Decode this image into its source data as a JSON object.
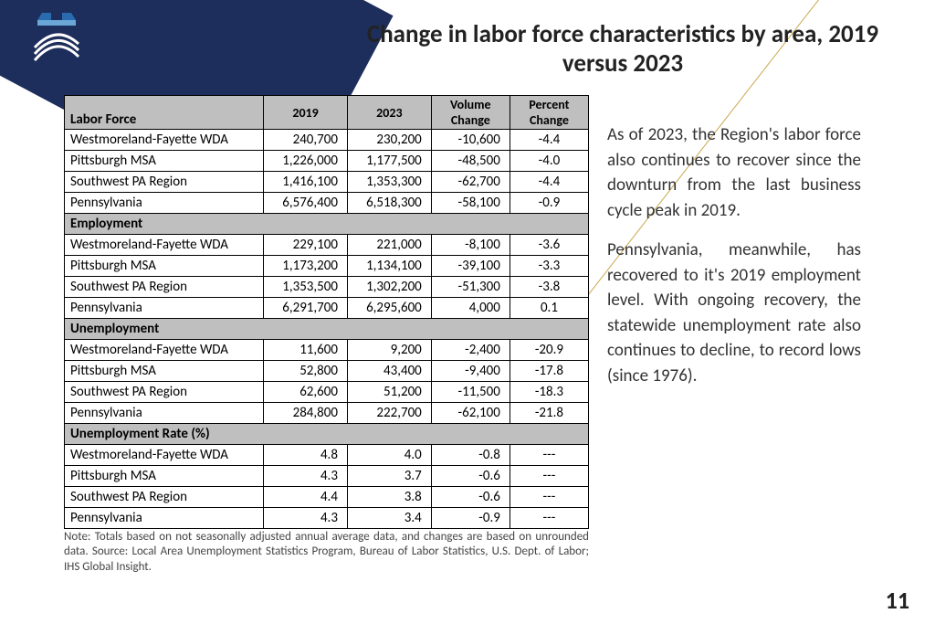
{
  "title": "Change in labor force characteristics by area, 2019 versus 2023",
  "page_number": "11",
  "colors": {
    "band": "#1d2e5c",
    "accent_line": "#c9a84f",
    "header_bg": "#bfbfbf",
    "logo_primary": "#2a6bb0",
    "logo_dark": "#1d2e5c"
  },
  "table": {
    "columns": [
      "2019",
      "2023",
      "Volume Change",
      "Percent Change"
    ],
    "sections": [
      {
        "label": "Labor Force",
        "rows": [
          [
            "Westmoreland-Fayette WDA",
            "240,700",
            "230,200",
            "-10,600",
            "-4.4"
          ],
          [
            "Pittsburgh MSA",
            "1,226,000",
            "1,177,500",
            "-48,500",
            "-4.0"
          ],
          [
            "Southwest PA Region",
            "1,416,100",
            "1,353,300",
            "-62,700",
            "-4.4"
          ],
          [
            "Pennsylvania",
            "6,576,400",
            "6,518,300",
            "-58,100",
            "-0.9"
          ]
        ]
      },
      {
        "label": "Employment",
        "rows": [
          [
            "Westmoreland-Fayette WDA",
            "229,100",
            "221,000",
            "-8,100",
            "-3.6"
          ],
          [
            "Pittsburgh MSA",
            "1,173,200",
            "1,134,100",
            "-39,100",
            "-3.3"
          ],
          [
            "Southwest PA Region",
            "1,353,500",
            "1,302,200",
            "-51,300",
            "-3.8"
          ],
          [
            "Pennsylvania",
            "6,291,700",
            "6,295,600",
            "4,000",
            "0.1"
          ]
        ]
      },
      {
        "label": "Unemployment",
        "rows": [
          [
            "Westmoreland-Fayette WDA",
            "11,600",
            "9,200",
            "-2,400",
            "-20.9"
          ],
          [
            "Pittsburgh MSA",
            "52,800",
            "43,400",
            "-9,400",
            "-17.8"
          ],
          [
            "Southwest PA Region",
            "62,600",
            "51,200",
            "-11,500",
            "-18.3"
          ],
          [
            "Pennsylvania",
            "284,800",
            "222,700",
            "-62,100",
            "-21.8"
          ]
        ]
      },
      {
        "label": "Unemployment Rate (%)",
        "rows": [
          [
            "Westmoreland-Fayette WDA",
            "4.8",
            "4.0",
            "-0.8",
            "---"
          ],
          [
            "Pittsburgh MSA",
            "4.3",
            "3.7",
            "-0.6",
            "---"
          ],
          [
            "Southwest PA Region",
            "4.4",
            "3.8",
            "-0.6",
            "---"
          ],
          [
            "Pennsylvania",
            "4.3",
            "3.4",
            "-0.9",
            "---"
          ]
        ]
      }
    ]
  },
  "note": "Note: Totals based on not seasonally adjusted annual average data, and changes are based on unrounded data. Source: Local Area Unemployment Statistics Program, Bureau of Labor Statistics, U.S. Dept. of Labor; IHS Global Insight.",
  "paragraphs": [
    "As of 2023, the Region's labor force also continues to recover since the downturn from the last business cycle peak in 2019.",
    "Pennsylvania, meanwhile, has recovered to it's 2019 employment level. With ongoing recovery, the statewide unemployment rate also continues to decline, to record lows (since 1976)."
  ]
}
